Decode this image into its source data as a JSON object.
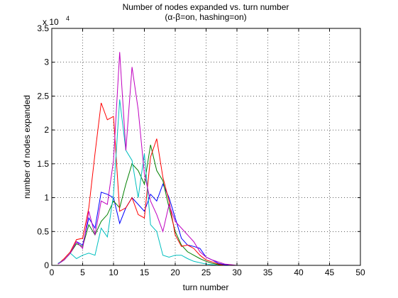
{
  "chart_data": {
    "type": "line",
    "title": "Number of nodes expanded vs. turn number",
    "subtitle": "(α-β=on, hashing=on)",
    "xlabel": "turn number",
    "ylabel": "number of nodes expanded",
    "exponent_label": "x 10",
    "exponent_power": "4",
    "xlim": [
      0,
      50
    ],
    "ylim": [
      0,
      3.5
    ],
    "xticks": [
      0,
      5,
      10,
      15,
      20,
      25,
      30,
      35,
      40,
      45,
      50
    ],
    "yticks": [
      0,
      0.5,
      1,
      1.5,
      2,
      2.5,
      3,
      3.5
    ],
    "xtick_labels": [
      "0",
      "5",
      "10",
      "15",
      "20",
      "25",
      "30",
      "35",
      "40",
      "45",
      "50"
    ],
    "ytick_labels": [
      "0",
      "0.5",
      "1",
      "1.5",
      "2",
      "2.5",
      "3",
      "3.5"
    ],
    "grid": true,
    "x": [
      1,
      2,
      3,
      4,
      5,
      6,
      7,
      8,
      9,
      10,
      11,
      12,
      13,
      14,
      15,
      16,
      17,
      18,
      19,
      20,
      21,
      22,
      23,
      24,
      25,
      26,
      27,
      28,
      29,
      30,
      31,
      32,
      33,
      34,
      35,
      36,
      37,
      38,
      39,
      40,
      41,
      42,
      43,
      44,
      45,
      46,
      47,
      48,
      49,
      50
    ],
    "series": [
      {
        "color": "#0000ff",
        "values": [
          0.02,
          0.08,
          0.18,
          0.35,
          0.3,
          0.7,
          0.55,
          1.08,
          1.05,
          1.0,
          0.62,
          0.85,
          1.0,
          0.9,
          0.8,
          1.05,
          0.95,
          1.2,
          1.0,
          0.7,
          0.4,
          0.3,
          0.28,
          0.25,
          0.12,
          0.08,
          0.03,
          0.01,
          0,
          0,
          0,
          0,
          0,
          0,
          0,
          0,
          0,
          0,
          0,
          0,
          0,
          0,
          0,
          0,
          0,
          0,
          0,
          0,
          0,
          0
        ]
      },
      {
        "color": "#008000",
        "values": [
          0.02,
          0.08,
          0.18,
          0.32,
          0.28,
          0.6,
          0.45,
          0.65,
          0.75,
          0.95,
          0.85,
          1.2,
          1.5,
          1.4,
          1.2,
          1.78,
          1.4,
          1.25,
          0.85,
          0.5,
          0.3,
          0.2,
          0.15,
          0.1,
          0.06,
          0.03,
          0.01,
          0,
          0,
          0,
          0,
          0,
          0,
          0,
          0,
          0,
          0,
          0,
          0,
          0,
          0,
          0,
          0,
          0,
          0,
          0,
          0,
          0,
          0,
          0
        ]
      },
      {
        "color": "#ff0000",
        "values": [
          0.02,
          0.1,
          0.2,
          0.38,
          0.4,
          0.85,
          1.65,
          2.4,
          2.15,
          2.2,
          0.8,
          0.85,
          1.0,
          0.75,
          0.7,
          1.6,
          1.87,
          1.3,
          0.95,
          0.45,
          0.28,
          0.3,
          0.25,
          0.15,
          0.08,
          0.05,
          0.02,
          0,
          0,
          0,
          0,
          0,
          0,
          0,
          0,
          0,
          0,
          0,
          0,
          0,
          0,
          0,
          0,
          0,
          0,
          0,
          0,
          0,
          0,
          0
        ]
      },
      {
        "color": "#00bfbf",
        "values": [
          0.03,
          0.08,
          0.18,
          0.1,
          0.15,
          0.18,
          0.15,
          0.55,
          0.42,
          1.05,
          2.45,
          1.7,
          1.55,
          1.0,
          1.65,
          0.6,
          0.5,
          0.15,
          0.12,
          0.15,
          0.15,
          0.1,
          0.06,
          0.04,
          0.02,
          0.01,
          0,
          0,
          0,
          0,
          0,
          0,
          0,
          0,
          0,
          0,
          0,
          0,
          0,
          0,
          0,
          0,
          0,
          0,
          0,
          0,
          0,
          0,
          0,
          0
        ]
      },
      {
        "color": "#bf00bf",
        "values": [
          0.02,
          0.08,
          0.18,
          0.35,
          0.25,
          0.8,
          0.45,
          0.95,
          0.9,
          1.55,
          3.15,
          1.7,
          2.93,
          2.3,
          1.35,
          0.95,
          0.75,
          0.5,
          0.9,
          0.65,
          0.55,
          0.45,
          0.35,
          0.2,
          0.12,
          0.08,
          0.05,
          0.02,
          0.01,
          0,
          0,
          0,
          0,
          0,
          0,
          0,
          0,
          0,
          0,
          0,
          0,
          0,
          0,
          0,
          0,
          0,
          0,
          0,
          0,
          0
        ]
      }
    ]
  }
}
